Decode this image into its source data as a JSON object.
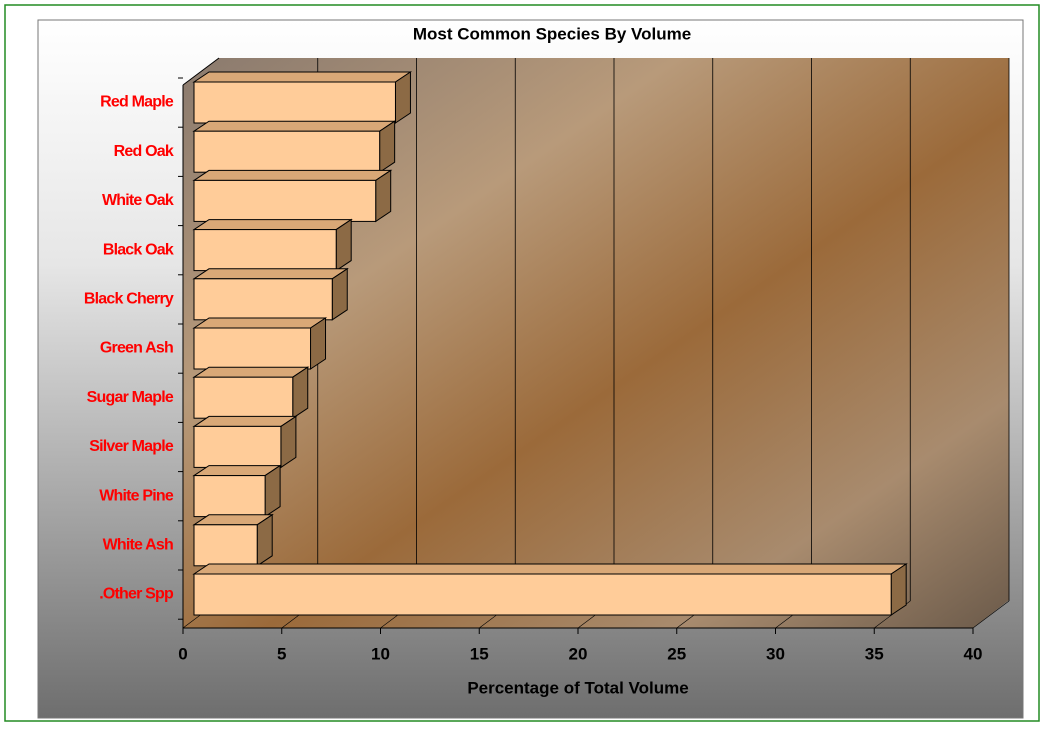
{
  "chart_data": {
    "type": "bar3d_horizontal",
    "title": "Most Common Species By Volume",
    "xlabel": "Percentage of Total Volume",
    "categories": [
      "Red Maple",
      "Red Oak",
      "White Oak",
      "Black Oak",
      "Black Cherry",
      "Green Ash",
      "Sugar Maple",
      "Silver Maple",
      "White Pine",
      "White Ash",
      ".Other Spp"
    ],
    "values": [
      10.2,
      9.4,
      9.2,
      7.2,
      7.0,
      5.9,
      5.0,
      4.4,
      3.6,
      3.2,
      35.3
    ],
    "color": "#ffcc99",
    "label_color": "#ff0000",
    "xlim": [
      0,
      40
    ],
    "xticks": [
      0,
      5,
      10,
      15,
      20,
      25,
      30,
      35,
      40
    ],
    "grid": true
  }
}
